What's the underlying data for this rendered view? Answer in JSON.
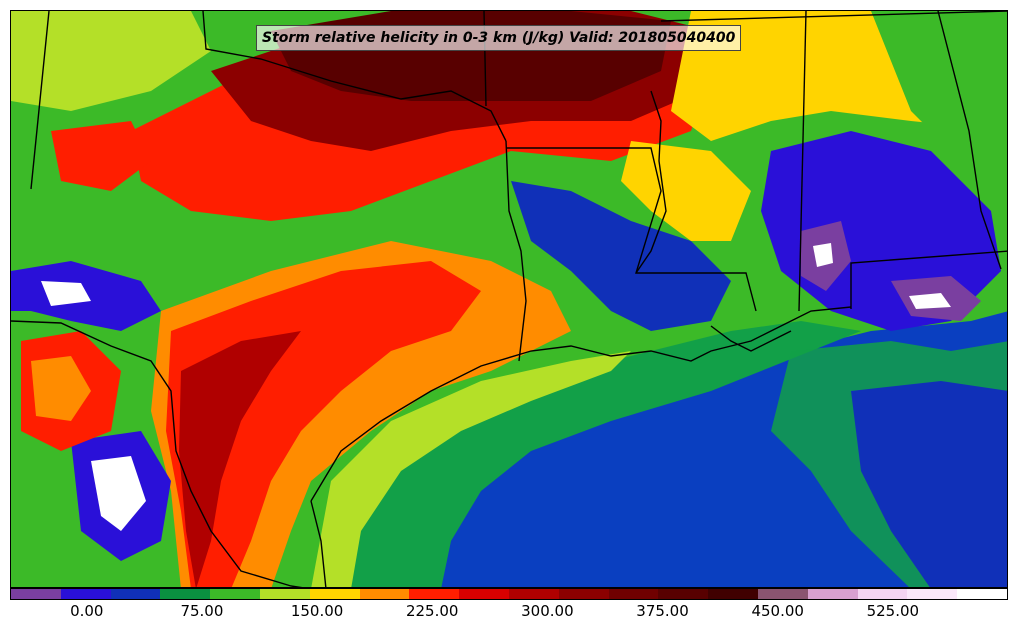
{
  "title": "Storm relative helicity in 0-3 km (J/kg) Valid: 201805040400",
  "colorbar": {
    "colors": [
      "#7a3fa0",
      "#2a10d8",
      "#1030b8",
      "#0a9040",
      "#3cba28",
      "#b4e028",
      "#ffd400",
      "#ff8c00",
      "#ff1e00",
      "#d80000",
      "#b00000",
      "#8c0000",
      "#700000",
      "#580000",
      "#400000",
      "#8a5470",
      "#d8a0d0",
      "#f4d4f2",
      "#fbe8fa",
      "#ffffff"
    ],
    "tick_labels": [
      "0.00",
      "75.00",
      "150.00",
      "225.00",
      "300.00",
      "375.00",
      "450.00",
      "525.00"
    ],
    "range": [
      -50,
      600
    ]
  },
  "palette": {
    "ocean": "#0a3fc0",
    "deep_ocean": "#0c2aa8",
    "shelf": "#12a048",
    "high": "#6e0000"
  }
}
